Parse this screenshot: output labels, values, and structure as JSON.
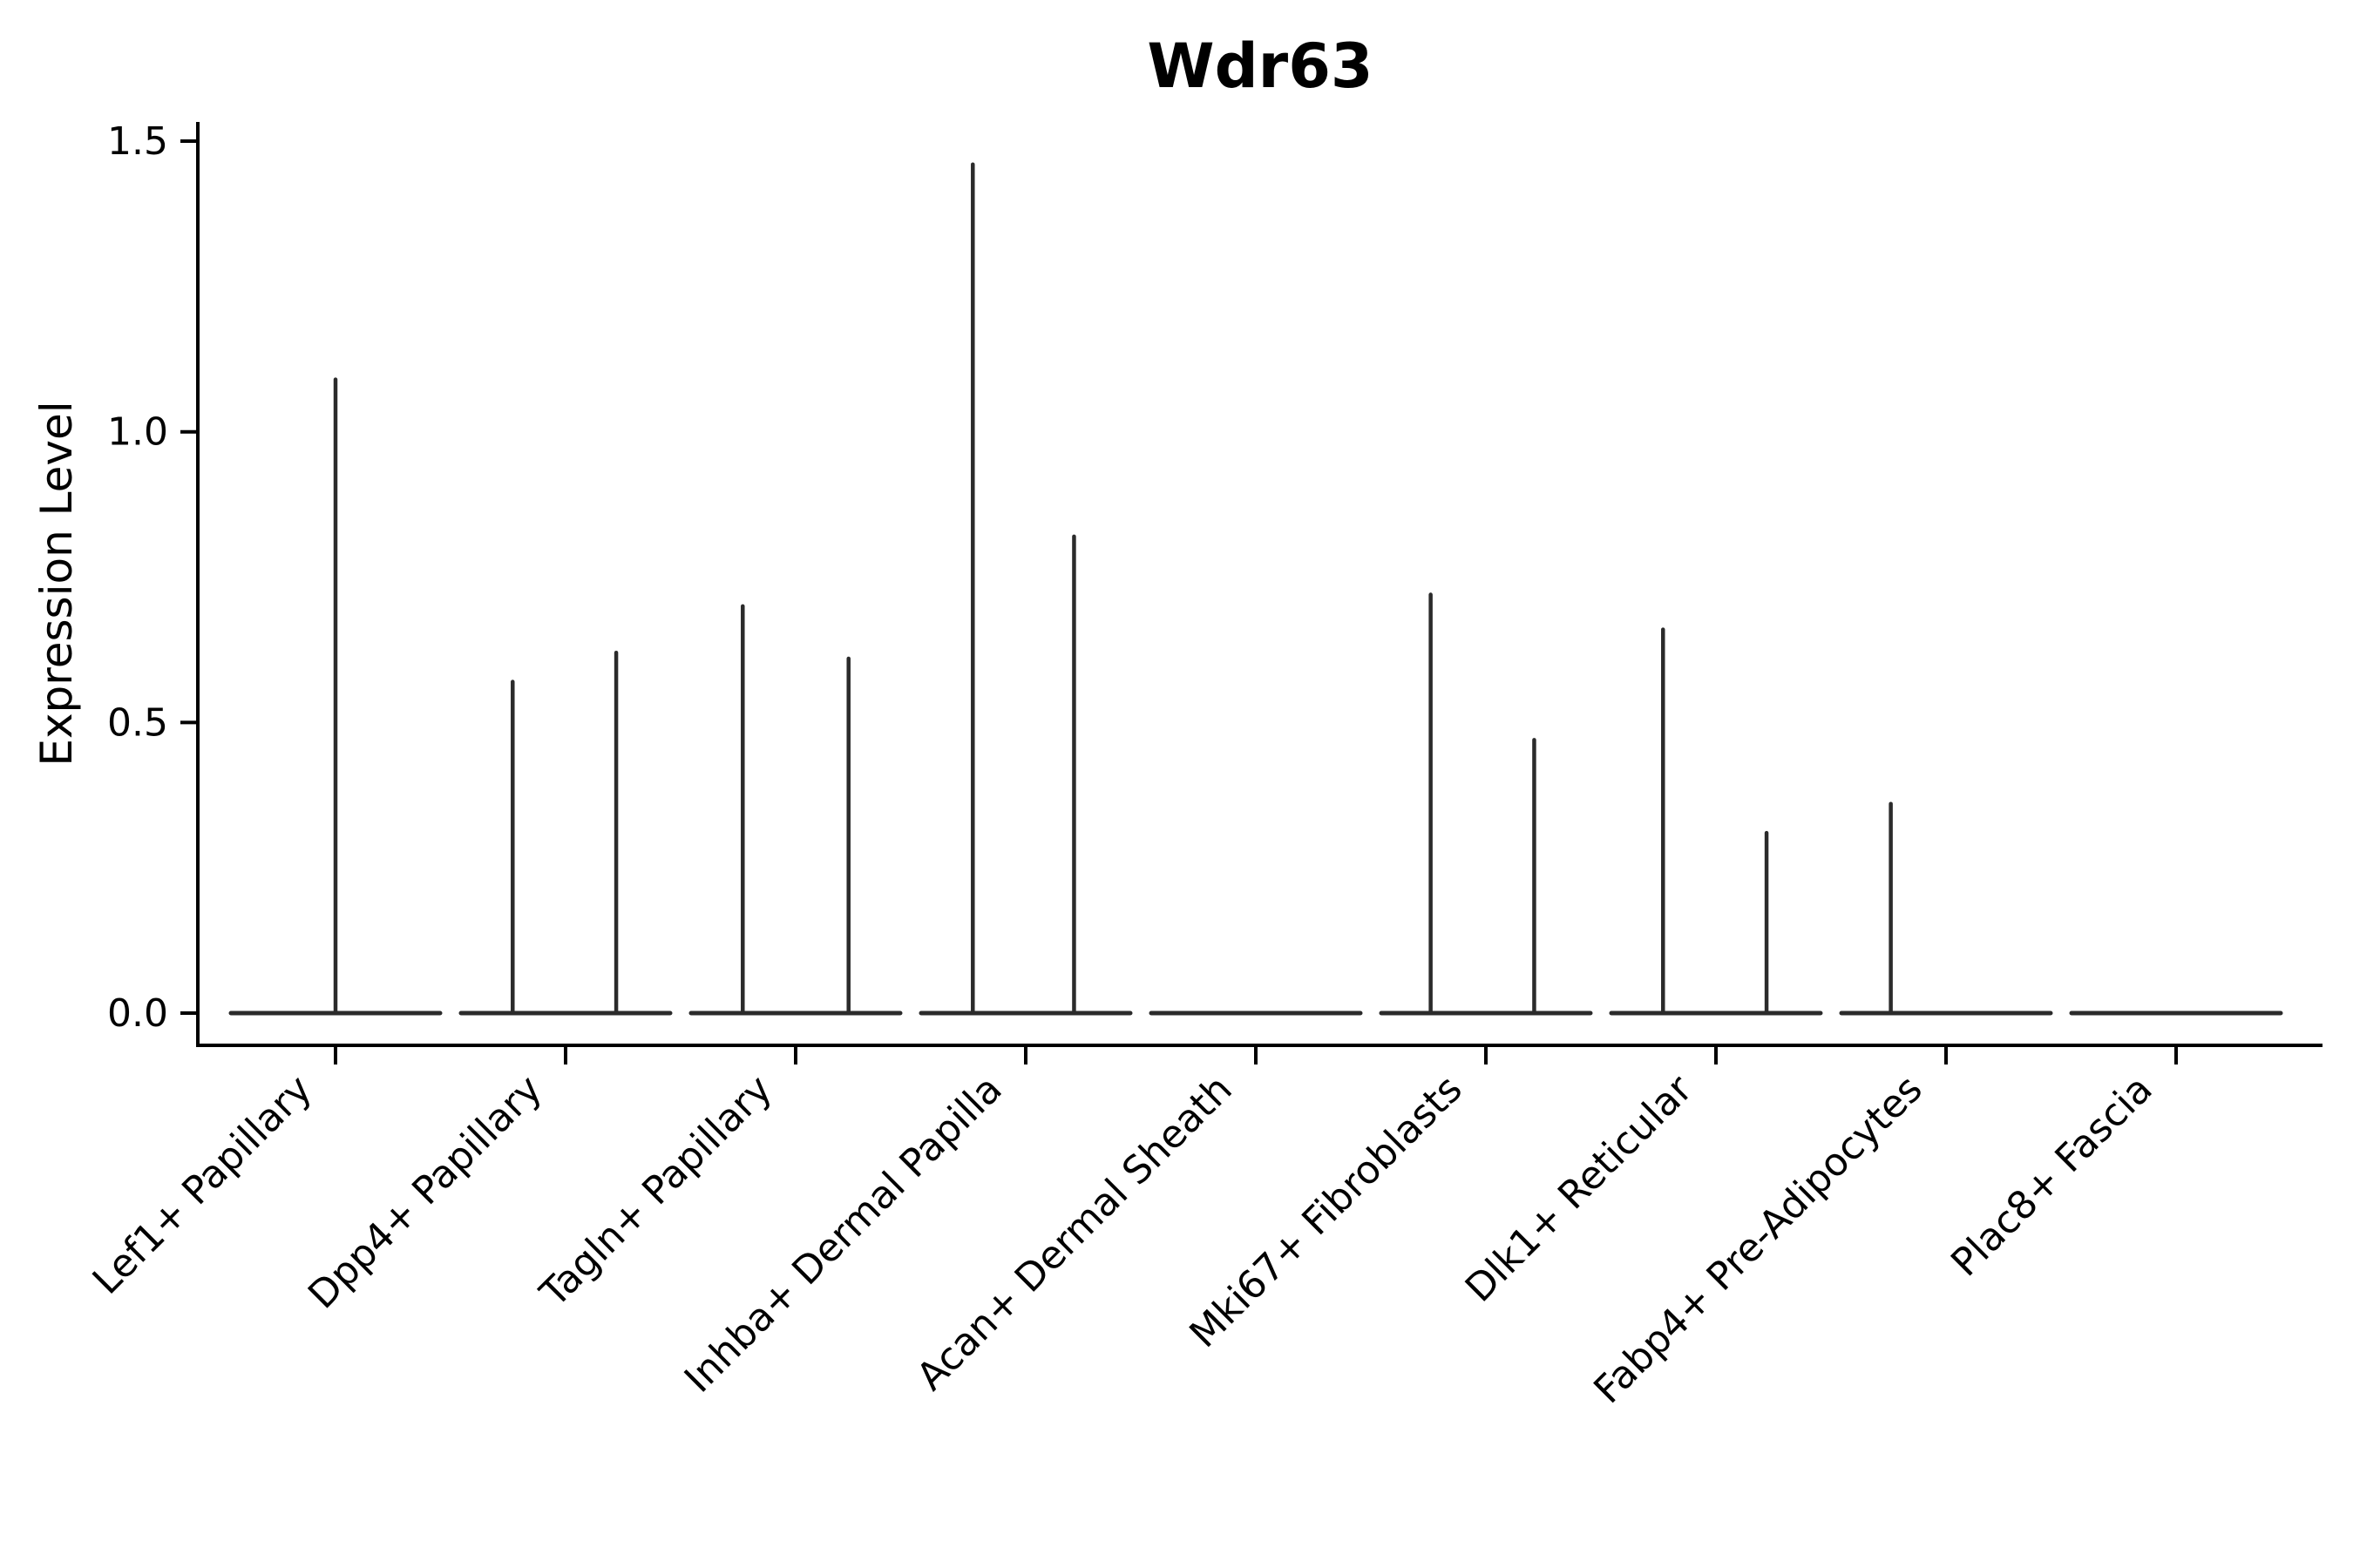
{
  "chart_data": {
    "type": "violin",
    "title": "Wdr63",
    "ylabel": "Expression Level",
    "xlabel": "",
    "ylim": [
      0,
      1.5
    ],
    "ytick_values": [
      0.0,
      0.5,
      1.0,
      1.5
    ],
    "ytick_labels": [
      "0.0",
      "0.5",
      "1.0",
      "1.5"
    ],
    "grid": false,
    "legend": "none",
    "categories": [
      "Lef1+ Papillary",
      "Dpp4+ Papillary",
      "Tagln+ Papillary",
      "Inhba+ Dermal Papilla",
      "Acan+ Dermal Sheath",
      "Mki67+ Fibroblasts",
      "Dlk1+ Reticular",
      "Fabp4+ Pre-Adipocytes",
      "Plac8+ Fascia"
    ],
    "violins": [
      {
        "category": "Lef1+ Papillary",
        "baseline_value": 0.0,
        "spikes": [
          {
            "offset_frac": 0.0,
            "max_value": 1.09
          }
        ]
      },
      {
        "category": "Dpp4+ Papillary",
        "baseline_value": 0.0,
        "spikes": [
          {
            "offset_frac": -0.23,
            "max_value": 0.57
          },
          {
            "offset_frac": 0.22,
            "max_value": 0.62
          }
        ]
      },
      {
        "category": "Tagln+ Papillary",
        "baseline_value": 0.0,
        "spikes": [
          {
            "offset_frac": -0.23,
            "max_value": 0.7
          },
          {
            "offset_frac": 0.23,
            "max_value": 0.61
          }
        ]
      },
      {
        "category": "Inhba+ Dermal Papilla",
        "baseline_value": 0.0,
        "spikes": [
          {
            "offset_frac": -0.23,
            "max_value": 1.46
          },
          {
            "offset_frac": 0.21,
            "max_value": 0.82
          }
        ]
      },
      {
        "category": "Acan+ Dermal Sheath",
        "baseline_value": 0.0,
        "spikes": []
      },
      {
        "category": "Mki67+ Fibroblasts",
        "baseline_value": 0.0,
        "spikes": [
          {
            "offset_frac": -0.24,
            "max_value": 0.72
          },
          {
            "offset_frac": 0.21,
            "max_value": 0.47
          }
        ]
      },
      {
        "category": "Dlk1+ Reticular",
        "baseline_value": 0.0,
        "spikes": [
          {
            "offset_frac": -0.23,
            "max_value": 0.66
          },
          {
            "offset_frac": 0.22,
            "max_value": 0.31
          }
        ]
      },
      {
        "category": "Fabp4+ Pre-Adipocytes",
        "baseline_value": 0.0,
        "spikes": [
          {
            "offset_frac": -0.24,
            "max_value": 0.36
          }
        ]
      },
      {
        "category": "Plac8+ Fascia",
        "baseline_value": 0.0,
        "spikes": []
      }
    ],
    "colors": {
      "violin": "#2b2b2b",
      "axis": "#000000",
      "text": "#000000",
      "background": "#ffffff"
    }
  }
}
